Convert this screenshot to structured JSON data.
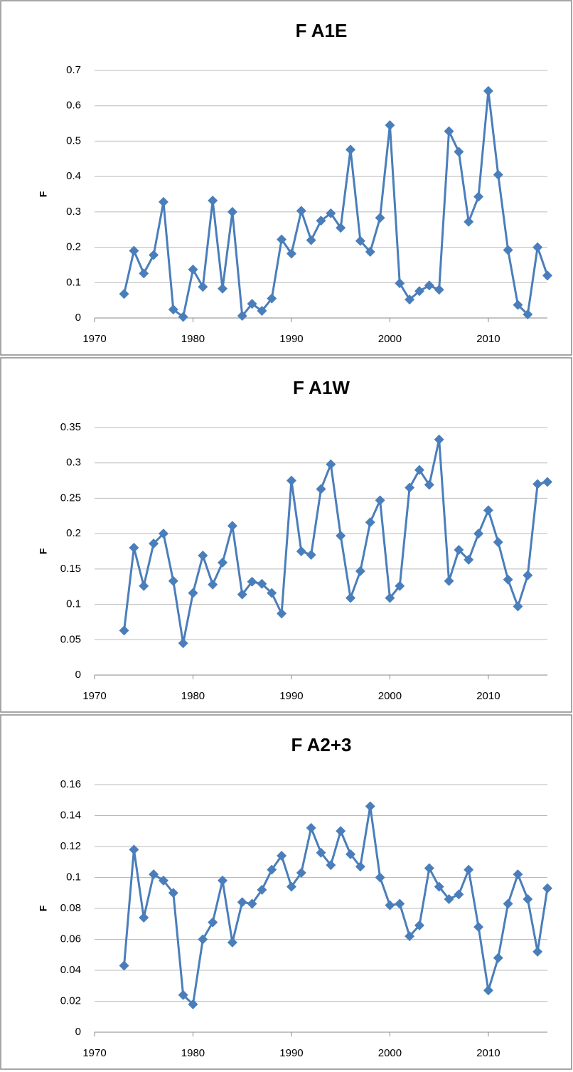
{
  "chart_data": [
    {
      "type": "line",
      "title": "F A1E",
      "y_label": "F",
      "color": "#4a7ebb",
      "x": [
        1973,
        1974,
        1975,
        1976,
        1977,
        1978,
        1979,
        1980,
        1981,
        1982,
        1983,
        1984,
        1985,
        1986,
        1987,
        1988,
        1989,
        1990,
        1991,
        1992,
        1993,
        1994,
        1995,
        1996,
        1997,
        1998,
        1999,
        2000,
        2001,
        2002,
        2003,
        2004,
        2005,
        2006,
        2007,
        2008,
        2009,
        2010,
        2011,
        2012,
        2013,
        2014,
        2015,
        2016
      ],
      "values": [
        0.068,
        0.19,
        0.126,
        0.178,
        0.328,
        0.024,
        0.003,
        0.137,
        0.088,
        0.332,
        0.083,
        0.3,
        0.006,
        0.04,
        0.02,
        0.055,
        0.222,
        0.182,
        0.303,
        0.22,
        0.275,
        0.296,
        0.255,
        0.476,
        0.218,
        0.187,
        0.283,
        0.545,
        0.098,
        0.052,
        0.076,
        0.092,
        0.08,
        0.528,
        0.47,
        0.272,
        0.343,
        0.642,
        0.405,
        0.192,
        0.037,
        0.01,
        0.2,
        0.12
      ],
      "xlim": [
        1970,
        2016
      ],
      "xticks": [
        1970,
        1980,
        1990,
        2000,
        2010
      ],
      "ylim": [
        0,
        0.7
      ],
      "yticks": [
        0,
        0.1,
        0.2,
        0.3,
        0.4,
        0.5,
        0.6,
        0.7
      ],
      "grid": true
    },
    {
      "type": "line",
      "title": "F A1W",
      "y_label": "F",
      "color": "#4a7ebb",
      "x": [
        1973,
        1974,
        1975,
        1976,
        1977,
        1978,
        1979,
        1980,
        1981,
        1982,
        1983,
        1984,
        1985,
        1986,
        1987,
        1988,
        1989,
        1990,
        1991,
        1992,
        1993,
        1994,
        1995,
        1996,
        1997,
        1998,
        1999,
        2000,
        2001,
        2002,
        2003,
        2004,
        2005,
        2006,
        2007,
        2008,
        2009,
        2010,
        2011,
        2012,
        2013,
        2014,
        2015,
        2016
      ],
      "values": [
        0.063,
        0.18,
        0.126,
        0.186,
        0.2,
        0.133,
        0.045,
        0.116,
        0.169,
        0.128,
        0.159,
        0.211,
        0.114,
        0.132,
        0.129,
        0.116,
        0.087,
        0.275,
        0.175,
        0.17,
        0.263,
        0.298,
        0.197,
        0.109,
        0.147,
        0.216,
        0.247,
        0.109,
        0.126,
        0.265,
        0.29,
        0.269,
        0.333,
        0.133,
        0.177,
        0.163,
        0.2,
        0.233,
        0.188,
        0.135,
        0.097,
        0.141,
        0.27,
        0.273
      ],
      "xlim": [
        1970,
        2016
      ],
      "xticks": [
        1970,
        1980,
        1990,
        2000,
        2010
      ],
      "ylim": [
        0,
        0.35
      ],
      "yticks": [
        0,
        0.05,
        0.1,
        0.15,
        0.2,
        0.25,
        0.3,
        0.35
      ],
      "grid": true
    },
    {
      "type": "line",
      "title": "F A2+3",
      "y_label": "F",
      "color": "#4a7ebb",
      "x": [
        1973,
        1974,
        1975,
        1976,
        1977,
        1978,
        1979,
        1980,
        1981,
        1982,
        1983,
        1984,
        1985,
        1986,
        1987,
        1988,
        1989,
        1990,
        1991,
        1992,
        1993,
        1994,
        1995,
        1996,
        1997,
        1998,
        1999,
        2000,
        2001,
        2002,
        2003,
        2004,
        2005,
        2006,
        2007,
        2008,
        2009,
        2010,
        2011,
        2012,
        2013,
        2014,
        2015,
        2016
      ],
      "values": [
        0.043,
        0.118,
        0.074,
        0.102,
        0.098,
        0.09,
        0.024,
        0.018,
        0.06,
        0.071,
        0.098,
        0.058,
        0.084,
        0.083,
        0.092,
        0.105,
        0.114,
        0.094,
        0.103,
        0.132,
        0.116,
        0.108,
        0.13,
        0.115,
        0.107,
        0.146,
        0.1,
        0.082,
        0.083,
        0.062,
        0.069,
        0.106,
        0.094,
        0.086,
        0.089,
        0.105,
        0.068,
        0.027,
        0.048,
        0.083,
        0.102,
        0.086,
        0.052,
        0.093
      ],
      "xlim": [
        1970,
        2016
      ],
      "xticks": [
        1970,
        1980,
        1990,
        2000,
        2010
      ],
      "ylim": [
        0,
        0.16
      ],
      "yticks": [
        0,
        0.02,
        0.04,
        0.06,
        0.08,
        0.1,
        0.12,
        0.14,
        0.16
      ],
      "grid": true
    }
  ]
}
